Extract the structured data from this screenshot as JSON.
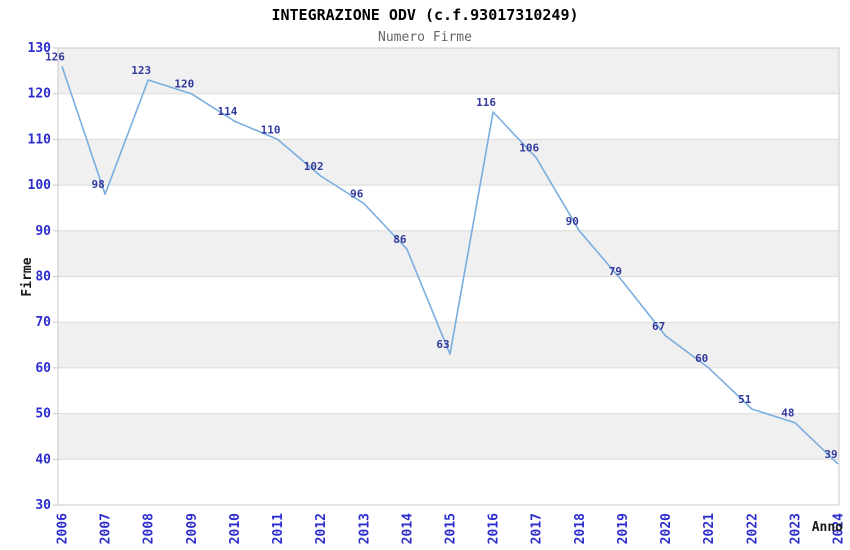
{
  "header": {
    "title": "INTEGRAZIONE ODV (c.f.93017310249)",
    "subtitle": "Numero Firme"
  },
  "chart_data": {
    "type": "line",
    "title": "INTEGRAZIONE ODV (c.f.93017310249)",
    "subtitle": "Numero Firme",
    "xlabel": "Anno",
    "ylabel": "Firme",
    "categories": [
      "2006",
      "2007",
      "2008",
      "2009",
      "2010",
      "2011",
      "2012",
      "2013",
      "2014",
      "2015",
      "2016",
      "2017",
      "2018",
      "2019",
      "2020",
      "2021",
      "2022",
      "2023",
      "2024"
    ],
    "series": [
      {
        "name": "Numero Firme",
        "values": [
          126,
          98,
          123,
          120,
          114,
          110,
          102,
          96,
          86,
          63,
          116,
          106,
          90,
          79,
          67,
          60,
          51,
          48,
          39
        ]
      }
    ],
    "ylim": [
      30,
      130
    ],
    "ytick_step": 10,
    "y_tick_labels": [
      "130",
      "120",
      "110",
      "100",
      "90",
      "80",
      "70",
      "60",
      "50",
      "40",
      "30"
    ],
    "grid": "horizontal-alternating-bands",
    "legend": "none",
    "data_labels": "on",
    "colors": {
      "line": "#7aaede",
      "data_label": "#333a9e",
      "axis_tick_label": "#2d2dce",
      "band_fill": "#f0f0f0",
      "grid_line": "#dcdcdc",
      "plot_border": "#c9c9c9",
      "title_color": "#000000",
      "subtitle_color": "#666666",
      "axis_title_color": "#1a1a1a"
    }
  }
}
